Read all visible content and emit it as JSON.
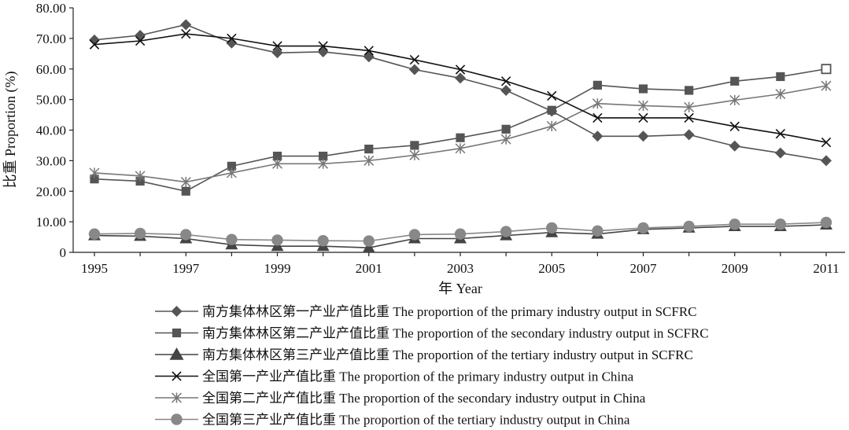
{
  "chart_data": {
    "type": "line",
    "xlabel": "年 Year",
    "ylabel": "比重 Proportion (%)",
    "x": [
      1995,
      1996,
      1997,
      1998,
      1999,
      2000,
      2001,
      2002,
      2003,
      2004,
      2005,
      2006,
      2007,
      2008,
      2009,
      2010,
      2011
    ],
    "x_ticks": [
      "1995",
      "1997",
      "1999",
      "2001",
      "2003",
      "2005",
      "2007",
      "2009",
      "2011"
    ],
    "ylim": [
      0,
      80
    ],
    "y_ticks": [
      "0",
      "10.00",
      "20.00",
      "30.00",
      "40.00",
      "50.00",
      "60.00",
      "70.00",
      "80.00"
    ],
    "grid": false,
    "legend_position": "bottom",
    "series": [
      {
        "name": "南方集体林区第一产业产值比重 The proportion of the primary industry output in SCFRC",
        "marker": "diamond",
        "color": "#555555",
        "values": [
          69.5,
          71.0,
          74.5,
          68.5,
          65.3,
          65.6,
          64.0,
          59.8,
          57.0,
          53.0,
          46.2,
          38.0,
          38.0,
          38.5,
          34.8,
          32.5,
          30.0
        ]
      },
      {
        "name": "南方集体林区第二产业产值比重 The proportion of the secondary industry output in SCFRC",
        "marker": "square",
        "color": "#555555",
        "values": [
          24.0,
          23.3,
          20.0,
          28.2,
          31.5,
          31.5,
          33.8,
          35.0,
          37.5,
          40.3,
          46.5,
          54.7,
          53.5,
          53.0,
          56.0,
          57.5,
          60.0
        ]
      },
      {
        "name": "南方集体林区第三产业产值比重 The proportion of the tertiary industry output in SCFRC",
        "marker": "triangle",
        "color": "#444444",
        "values": [
          5.5,
          5.3,
          4.5,
          2.5,
          2.0,
          2.0,
          1.5,
          4.5,
          4.5,
          5.5,
          6.5,
          6.0,
          7.5,
          8.0,
          8.5,
          8.5,
          9.0
        ]
      },
      {
        "name": "全国第一产业产值比重 The proportion of the primary industry output in China",
        "marker": "x",
        "color": "#111111",
        "values": [
          68.0,
          69.2,
          71.5,
          70.0,
          67.5,
          67.5,
          66.0,
          63.0,
          59.8,
          56.0,
          51.2,
          44.0,
          44.0,
          44.0,
          41.2,
          38.8,
          36.0
        ]
      },
      {
        "name": "全国第二产业产值比重 The proportion of the secondary industry output in China",
        "marker": "asterisk",
        "color": "#777777",
        "values": [
          26.0,
          25.0,
          23.0,
          26.0,
          29.0,
          29.0,
          30.0,
          31.8,
          34.0,
          37.0,
          41.3,
          48.7,
          48.0,
          47.5,
          49.8,
          51.8,
          54.5
        ]
      },
      {
        "name": "全国第三产业产值比重 The proportion of the tertiary industry output in China",
        "marker": "circle",
        "color": "#888888",
        "values": [
          6.0,
          6.2,
          5.8,
          4.2,
          4.0,
          3.8,
          3.7,
          5.8,
          6.0,
          6.8,
          8.0,
          7.0,
          8.0,
          8.5,
          9.2,
          9.2,
          9.8
        ]
      }
    ]
  }
}
